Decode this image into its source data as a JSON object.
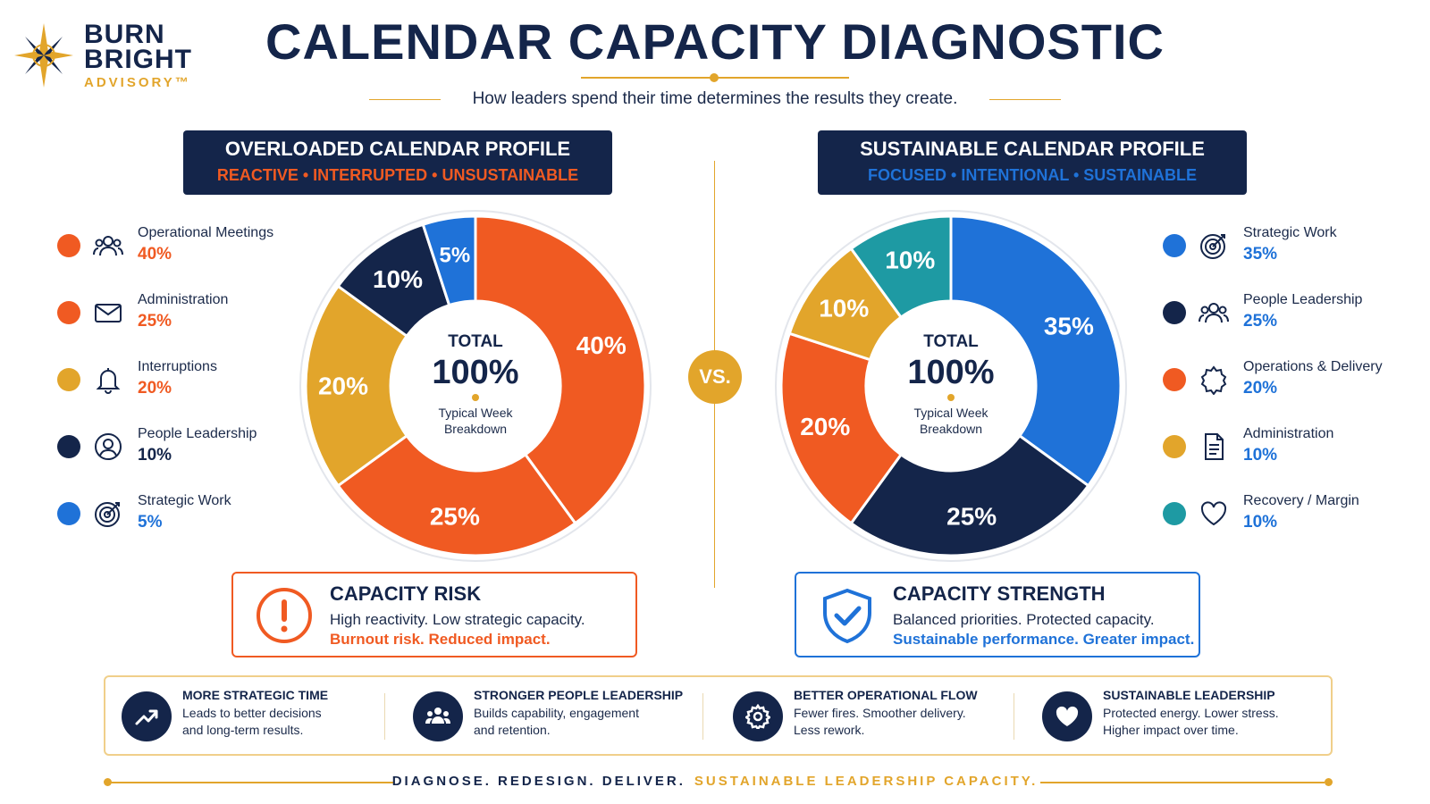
{
  "brand": {
    "line1": "BURN",
    "line2": "BRIGHT",
    "line3": "ADVISORY™"
  },
  "header": {
    "title": "CALENDAR CAPACITY DIAGNOSTIC",
    "subtitle": "How leaders spend their time determines the results they create."
  },
  "colors": {
    "orange": "#f05a22",
    "gold": "#e2a52b",
    "navy": "#14254a",
    "blue": "#1f72d8",
    "teal": "#1e9aa3"
  },
  "left": {
    "title": "OVERLOADED CALENDAR PROFILE",
    "tagline": "REACTIVE • INTERRUPTED • UNSUSTAINABLE",
    "legend": [
      {
        "label": "Operational Meetings",
        "value": "40%",
        "icon": "people-icon"
      },
      {
        "label": "Administration",
        "value": "25%",
        "icon": "mail-icon"
      },
      {
        "label": "Interruptions",
        "value": "20%",
        "icon": "bell-icon"
      },
      {
        "label": "People Leadership",
        "value": "10%",
        "icon": "user-circle-icon"
      },
      {
        "label": "Strategic Work",
        "value": "5%",
        "icon": "target-icon"
      }
    ],
    "center": {
      "total": "TOTAL",
      "big": "100%",
      "cap1": "Typical Week",
      "cap2": "Breakdown"
    },
    "callout": {
      "title": "CAPACITY RISK",
      "line1": "High reactivity. Low strategic capacity.",
      "line2": "Burnout risk. Reduced impact."
    }
  },
  "vs": "VS.",
  "right": {
    "title": "SUSTAINABLE CALENDAR PROFILE",
    "tagline": "FOCUSED • INTENTIONAL • SUSTAINABLE",
    "legend": [
      {
        "label": "Strategic Work",
        "value": "35%",
        "icon": "target-icon"
      },
      {
        "label": "People Leadership",
        "value": "25%",
        "icon": "people-icon"
      },
      {
        "label": "Operations & Delivery",
        "value": "20%",
        "icon": "gear-icon"
      },
      {
        "label": "Administration",
        "value": "10%",
        "icon": "document-icon"
      },
      {
        "label": "Recovery / Margin",
        "value": "10%",
        "icon": "heart-icon"
      }
    ],
    "center": {
      "total": "TOTAL",
      "big": "100%",
      "cap1": "Typical Week",
      "cap2": "Breakdown"
    },
    "callout": {
      "title": "CAPACITY STRENGTH",
      "line1": "Balanced priorities. Protected capacity.",
      "line2": "Sustainable performance. Greater impact."
    }
  },
  "chart_data": [
    {
      "type": "pie",
      "title": "OVERLOADED CALENDAR PROFILE",
      "categories": [
        "Operational Meetings",
        "Administration",
        "Interruptions",
        "People Leadership",
        "Strategic Work"
      ],
      "values": [
        40,
        25,
        20,
        10,
        5
      ],
      "labels": [
        "40%",
        "25%",
        "20%",
        "10%",
        "5%"
      ],
      "colors": [
        "#f05a22",
        "#f05a22",
        "#e2a52b",
        "#14254a",
        "#1f72d8"
      ]
    },
    {
      "type": "pie",
      "title": "SUSTAINABLE CALENDAR PROFILE",
      "categories": [
        "Strategic Work",
        "People Leadership",
        "Operations & Delivery",
        "Administration",
        "Recovery / Margin"
      ],
      "values": [
        35,
        25,
        20,
        10,
        10
      ],
      "labels": [
        "35%",
        "25%",
        "20%",
        "10%",
        "10%"
      ],
      "colors": [
        "#1f72d8",
        "#14254a",
        "#f05a22",
        "#e2a52b",
        "#1e9aa3"
      ]
    }
  ],
  "benefits": [
    {
      "title": "MORE STRATEGIC TIME",
      "d1": "Leads to better decisions",
      "d2": "and long-term results.",
      "icon": "trend-up-icon"
    },
    {
      "title": "STRONGER PEOPLE LEADERSHIP",
      "d1": "Builds capability, engagement",
      "d2": "and retention.",
      "icon": "team-icon"
    },
    {
      "title": "BETTER OPERATIONAL FLOW",
      "d1": "Fewer fires. Smoother delivery.",
      "d2": "Less rework.",
      "icon": "gear-icon"
    },
    {
      "title": "SUSTAINABLE LEADERSHIP",
      "d1": "Protected energy. Lower stress.",
      "d2": "Higher impact over time.",
      "icon": "heart-icon"
    }
  ],
  "footer": {
    "part1": "DIAGNOSE. REDESIGN. DELIVER.",
    "part2": "SUSTAINABLE LEADERSHIP CAPACITY."
  }
}
